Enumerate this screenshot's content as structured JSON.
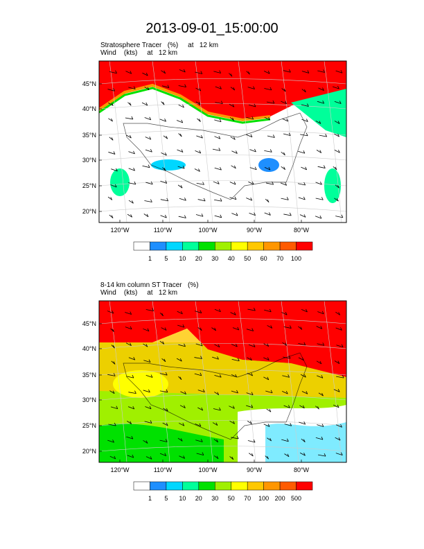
{
  "title": "2013-09-01_15:00:00",
  "chart_data": [
    {
      "type": "heatmap",
      "title": "Stratosphere Tracer   (%)     at   12 km",
      "subtitle": "Wind    (kts)     at   12 km",
      "x_ticks": [
        "120°W",
        "110°W",
        "100°W",
        "90°W",
        "80°W"
      ],
      "y_ticks": [
        "45°N",
        "40°N",
        "35°N",
        "30°N",
        "25°N",
        "20°N"
      ],
      "colorbar": {
        "levels": [
          "1",
          "5",
          "10",
          "20",
          "30",
          "40",
          "50",
          "60",
          "70",
          "100"
        ],
        "colors": [
          "#ffffff",
          "#1e8fff",
          "#00d7ff",
          "#00ff9a",
          "#00e100",
          "#a0f000",
          "#ffff00",
          "#ffc800",
          "#ff9600",
          "#ff5a00",
          "#ff0000"
        ]
      }
    },
    {
      "type": "heatmap",
      "title": "8-14 km column ST Tracer   (%)",
      "subtitle": "Wind    (kts)     at   12 km",
      "x_ticks": [
        "120°W",
        "110°W",
        "100°W",
        "90°W",
        "80°W"
      ],
      "y_ticks": [
        "45°N",
        "40°N",
        "35°N",
        "30°N",
        "25°N",
        "20°N"
      ],
      "colorbar": {
        "levels": [
          "1",
          "5",
          "10",
          "20",
          "30",
          "50",
          "70",
          "100",
          "200",
          "500"
        ],
        "colors": [
          "#ffffff",
          "#1e8fff",
          "#00d7ff",
          "#00ff9a",
          "#00e100",
          "#a0f000",
          "#ffff00",
          "#ffc800",
          "#ff9600",
          "#ff5a00",
          "#ff0000"
        ]
      }
    }
  ]
}
